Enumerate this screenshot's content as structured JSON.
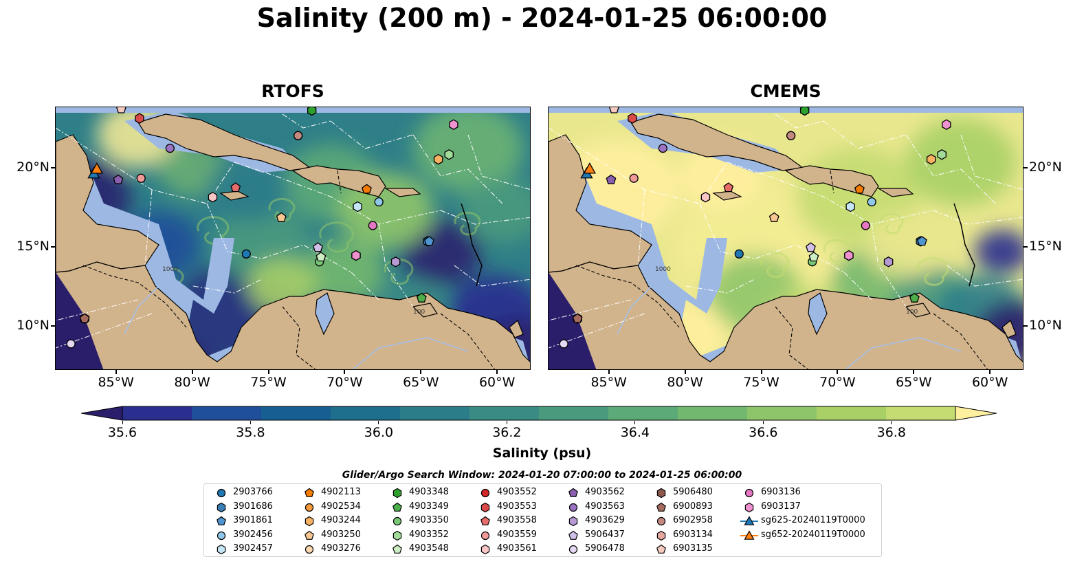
{
  "title": "Salinity (200 m) - 2024-01-25 06:00:00",
  "panels": [
    {
      "title": "RTOFS"
    },
    {
      "title": "CMEMS"
    }
  ],
  "axes": {
    "lon_ticks": [
      "85°W",
      "80°W",
      "75°W",
      "70°W",
      "65°W",
      "60°W"
    ],
    "lat_ticks": [
      "20°N",
      "15°N",
      "10°N"
    ]
  },
  "colorbar": {
    "label": "Salinity (psu)",
    "ticks": [
      "35.6",
      "35.8",
      "36.0",
      "36.2",
      "36.4",
      "36.6",
      "36.8"
    ],
    "range": [
      35.55,
      36.95
    ],
    "levels": 14,
    "colors": [
      "#2b1e6b",
      "#2a2e8f",
      "#1f4e9a",
      "#175f93",
      "#1e6e8e",
      "#2b7d89",
      "#3a8b84",
      "#4a9a7e",
      "#5caa77",
      "#73b86f",
      "#8fc56a",
      "#a8d067",
      "#c4dc71",
      "#fff0a0"
    ]
  },
  "contour_labels": [
    "100",
    "1000"
  ],
  "map_colors": {
    "land": "#d2b48c",
    "shelf": "#9db9e3",
    "eez": "#ffffff",
    "border": "#000000"
  },
  "legend": {
    "title": "Glider/Argo Search Window: 2024-01-20 07:00:00 to 2024-01-25 06:00:00",
    "entries": [
      {
        "id": "2903766",
        "marker": "circle",
        "color": "#1f77b4"
      },
      {
        "id": "3901686",
        "marker": "hexagon",
        "color": "#3a7fb8"
      },
      {
        "id": "3901861",
        "marker": "pentagon",
        "color": "#4f95cf"
      },
      {
        "id": "3902456",
        "marker": "circle",
        "color": "#8fc7ea"
      },
      {
        "id": "3902457",
        "marker": "hexagon",
        "color": "#c6e6f6"
      },
      {
        "id": "4902113",
        "marker": "pentagon",
        "color": "#f57c00"
      },
      {
        "id": "4902534",
        "marker": "circle",
        "color": "#f59a3c"
      },
      {
        "id": "4903244",
        "marker": "hexagon",
        "color": "#f8b063"
      },
      {
        "id": "4903250",
        "marker": "pentagon",
        "color": "#f8c690"
      },
      {
        "id": "4903276",
        "marker": "circle",
        "color": "#fbd8b0"
      },
      {
        "id": "4903348",
        "marker": "hexagon",
        "color": "#2ca02c"
      },
      {
        "id": "4903349",
        "marker": "pentagon",
        "color": "#4caf4c"
      },
      {
        "id": "4903350",
        "marker": "circle",
        "color": "#78c878"
      },
      {
        "id": "4903352",
        "marker": "hexagon",
        "color": "#a3dc9a"
      },
      {
        "id": "4903548",
        "marker": "pentagon",
        "color": "#cdeec4"
      },
      {
        "id": "4903552",
        "marker": "circle",
        "color": "#d62728"
      },
      {
        "id": "4903553",
        "marker": "hexagon",
        "color": "#dc4a4a"
      },
      {
        "id": "4903558",
        "marker": "pentagon",
        "color": "#e66b6b"
      },
      {
        "id": "4903559",
        "marker": "circle",
        "color": "#f19a9a"
      },
      {
        "id": "4903561",
        "marker": "hexagon",
        "color": "#f8c6c4"
      },
      {
        "id": "4903562",
        "marker": "pentagon",
        "color": "#8a5fb0"
      },
      {
        "id": "4903563",
        "marker": "circle",
        "color": "#9c72c2"
      },
      {
        "id": "4903629",
        "marker": "hexagon",
        "color": "#b79ad4"
      },
      {
        "id": "5906437",
        "marker": "pentagon",
        "color": "#d0bfe6"
      },
      {
        "id": "5906478",
        "marker": "circle",
        "color": "#e4d8f2"
      },
      {
        "id": "5906480",
        "marker": "hexagon",
        "color": "#8c564b"
      },
      {
        "id": "6900893",
        "marker": "pentagon",
        "color": "#a56b5f"
      },
      {
        "id": "6902958",
        "marker": "circle",
        "color": "#c48a80"
      },
      {
        "id": "6903134",
        "marker": "hexagon",
        "color": "#e6a79e"
      },
      {
        "id": "6903135",
        "marker": "pentagon",
        "color": "#f6cabf"
      },
      {
        "id": "6903136",
        "marker": "circle",
        "color": "#e377c2"
      },
      {
        "id": "6903137",
        "marker": "hexagon",
        "color": "#f091d0"
      },
      {
        "id": "sg625-20240119T0000",
        "marker": "triangle-line",
        "color": "#1f77b4"
      },
      {
        "id": "sg652-20240119T0000",
        "marker": "triangle-line",
        "color": "#ff7f0e"
      }
    ]
  },
  "floats": [
    {
      "id": "2903766",
      "lon": -76.5,
      "lat": 14.6
    },
    {
      "id": "3901686",
      "lon": -64.6,
      "lat": 15.4
    },
    {
      "id": "3901861",
      "lon": -64.5,
      "lat": 15.4
    },
    {
      "id": "3902456",
      "lon": -67.8,
      "lat": 17.9
    },
    {
      "id": "3902457",
      "lon": -69.2,
      "lat": 17.6
    },
    {
      "id": "4902113",
      "lon": -68.6,
      "lat": 18.7
    },
    {
      "id": "4902534",
      "lon": -63.9,
      "lat": 20.6
    },
    {
      "id": "4903244",
      "lon": -63.9,
      "lat": 20.6
    },
    {
      "id": "4903250",
      "lon": -74.2,
      "lat": 16.9
    },
    {
      "id": "4903276",
      "lon": -73.1,
      "lat": 22.1
    },
    {
      "id": "4903348",
      "lon": -72.2,
      "lat": 23.7
    },
    {
      "id": "4903349",
      "lon": -65.0,
      "lat": 11.8
    },
    {
      "id": "4903350",
      "lon": -71.7,
      "lat": 14.1
    },
    {
      "id": "4903352",
      "lon": -63.2,
      "lat": 20.9
    },
    {
      "id": "4903548",
      "lon": -71.6,
      "lat": 14.4
    },
    {
      "id": "4903552",
      "lon": -83.5,
      "lat": 23.2
    },
    {
      "id": "4903553",
      "lon": -83.5,
      "lat": 23.2
    },
    {
      "id": "4903558",
      "lon": -77.2,
      "lat": 18.8
    },
    {
      "id": "4903559",
      "lon": -83.4,
      "lat": 19.4
    },
    {
      "id": "4903561",
      "lon": -78.7,
      "lat": 18.2
    },
    {
      "id": "4903562",
      "lon": -84.9,
      "lat": 19.3
    },
    {
      "id": "4903563",
      "lon": -81.5,
      "lat": 21.3
    },
    {
      "id": "4903629",
      "lon": -66.7,
      "lat": 14.1
    },
    {
      "id": "5906437",
      "lon": -71.8,
      "lat": 15.0
    },
    {
      "id": "5906478",
      "lon": -88.0,
      "lat": 8.9
    },
    {
      "id": "5906480",
      "lon": -87.1,
      "lat": 10.5
    },
    {
      "id": "6900893",
      "lon": -87.1,
      "lat": 10.5
    },
    {
      "id": "6902958",
      "lon": -73.1,
      "lat": 22.1
    },
    {
      "id": "6903134",
      "lon": -69.3,
      "lat": 14.5
    },
    {
      "id": "6903135",
      "lon": -84.7,
      "lat": 23.8
    },
    {
      "id": "6903136",
      "lon": -68.2,
      "lat": 16.4
    },
    {
      "id": "6903137",
      "lon": -69.3,
      "lat": 14.5
    },
    {
      "id": "6903137b",
      "lon": -62.9,
      "lat": 22.8
    }
  ],
  "gliders": [
    {
      "id": "sg625-20240119T0000",
      "lon": -86.5,
      "lat": 19.7
    },
    {
      "id": "sg652-20240119T0000",
      "lon": -86.3,
      "lat": 20.0
    }
  ]
}
